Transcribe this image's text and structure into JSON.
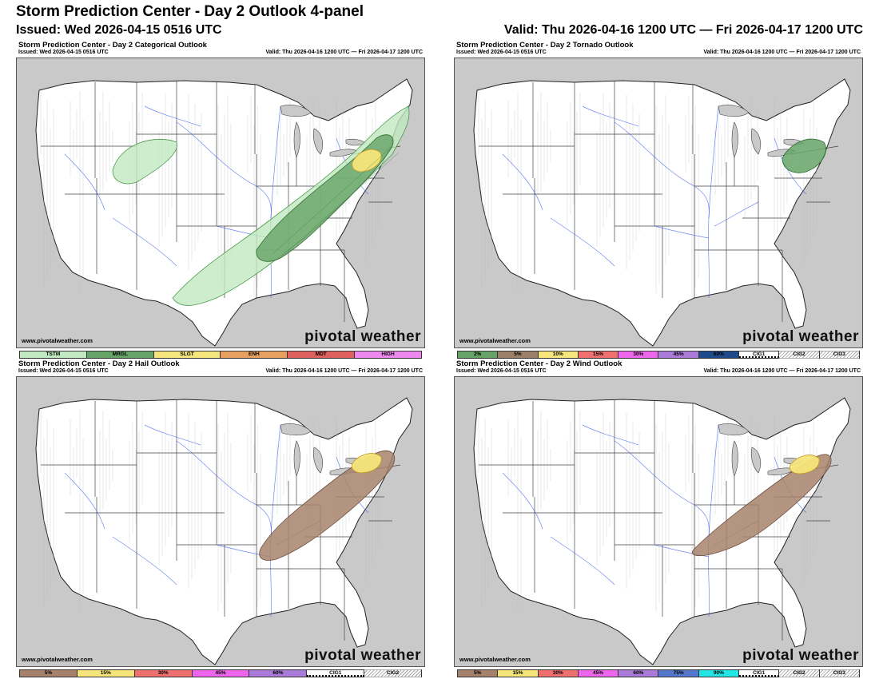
{
  "header": {
    "title": "Storm Prediction Center - Day 2 Outlook 4-panel",
    "issued": "Issued: Wed 2026-04-15 0516 UTC",
    "valid": "Valid: Thu 2026-04-16 1200 UTC — Fri 2026-04-17 1200 UTC"
  },
  "panels": [
    {
      "title": "Storm Prediction Center - Day 2 Categorical Outlook",
      "issued": "Issued: Wed 2026-04-15 0516 UTC",
      "valid": "Valid: Thu 2026-04-16 1200 UTC — Fri 2026-04-17 1200 UTC",
      "credit": "www.pivotalweather.com",
      "brand": "pivotal weather",
      "legend": [
        {
          "label": "TSTM",
          "color": "#c1e9c1"
        },
        {
          "label": "MRGL",
          "color": "#66a366"
        },
        {
          "label": "SLGT",
          "color": "#f6e57a"
        },
        {
          "label": "ENH",
          "color": "#e8a060"
        },
        {
          "label": "MDT",
          "color": "#e06060"
        },
        {
          "label": "HIGH",
          "color": "#ee88ee"
        }
      ]
    },
    {
      "title": "Storm Prediction Center - Day 2 Tornado Outlook",
      "issued": "Issued: Wed 2026-04-15 0516 UTC",
      "valid": "Valid: Thu 2026-04-16 1200 UTC — Fri 2026-04-17 1200 UTC",
      "credit": "www.pivotalweather.com",
      "brand": "pivotal weather",
      "legend": [
        {
          "label": "2%",
          "color": "#66a366"
        },
        {
          "label": "5%",
          "color": "#9d8068"
        },
        {
          "label": "10%",
          "color": "#f6e57a"
        },
        {
          "label": "15%",
          "color": "#f07070"
        },
        {
          "label": "30%",
          "color": "#ee66ee"
        },
        {
          "label": "45%",
          "color": "#a97ad8"
        },
        {
          "label": "60%",
          "color": "#1f4a8a"
        },
        {
          "label": "CIG1",
          "color": "#ffffff",
          "pattern": "cig1"
        },
        {
          "label": "CIG2",
          "color": "#ffffff",
          "pattern": "cig"
        },
        {
          "label": "CIG3",
          "color": "#ffffff",
          "pattern": "cig"
        }
      ]
    },
    {
      "title": "Storm Prediction Center - Day 2 Hail Outlook",
      "issued": "Issued: Wed 2026-04-15 0516 UTC",
      "valid": "Valid: Thu 2026-04-16 1200 UTC — Fri 2026-04-17 1200 UTC",
      "credit": "www.pivotalweather.com",
      "brand": "pivotal weather",
      "legend": [
        {
          "label": "5%",
          "color": "#a6826c"
        },
        {
          "label": "15%",
          "color": "#f6e57a"
        },
        {
          "label": "30%",
          "color": "#f07070"
        },
        {
          "label": "45%",
          "color": "#ee66ee"
        },
        {
          "label": "60%",
          "color": "#a97ad8"
        },
        {
          "label": "CIG1",
          "color": "#ffffff",
          "pattern": "cig1"
        },
        {
          "label": "CIG2",
          "color": "#ffffff",
          "pattern": "cig"
        }
      ]
    },
    {
      "title": "Storm Prediction Center - Day 2 Wind Outlook",
      "issued": "Issued: Wed 2026-04-15 0516 UTC",
      "valid": "Valid: Thu 2026-04-16 1200 UTC — Fri 2026-04-17 1200 UTC",
      "credit": "www.pivotalweather.com",
      "brand": "pivotal weather",
      "legend": [
        {
          "label": "5%",
          "color": "#a6826c"
        },
        {
          "label": "15%",
          "color": "#f6e57a"
        },
        {
          "label": "30%",
          "color": "#f07070"
        },
        {
          "label": "45%",
          "color": "#ee66ee"
        },
        {
          "label": "60%",
          "color": "#a97ad8"
        },
        {
          "label": "75%",
          "color": "#5577cc"
        },
        {
          "label": "90%",
          "color": "#22e5e5"
        },
        {
          "label": "CIG1",
          "color": "#ffffff",
          "pattern": "cig1"
        },
        {
          "label": "CIG2",
          "color": "#ffffff",
          "pattern": "cig"
        },
        {
          "label": "CIG3",
          "color": "#ffffff",
          "pattern": "cig"
        }
      ]
    }
  ],
  "colors": {
    "land": "#ffffff",
    "outside": "#c9c9c9",
    "water": "#ffffff",
    "tstm": "#c1e9c1",
    "mrgl": "#66a366",
    "slgt": "#f6e57a",
    "hail5": "#a6826c",
    "wind5": "#a6826c",
    "prob15": "#f6e57a",
    "tor2": "#66a366"
  }
}
